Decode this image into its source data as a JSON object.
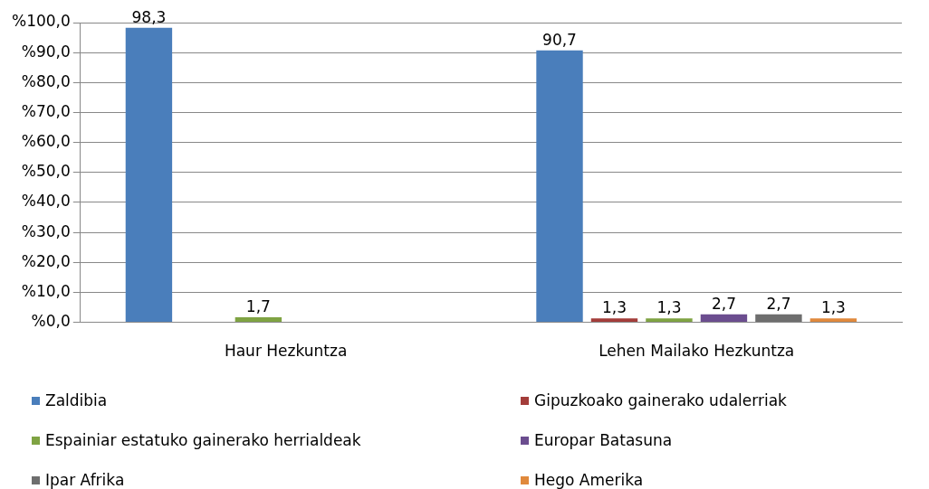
{
  "chart_data": {
    "type": "bar",
    "categories": [
      "Haur Hezkuntza",
      "Lehen Mailako Hezkuntza"
    ],
    "series": [
      {
        "name": "Zaldibia",
        "color": "#4a7ebb",
        "values": [
          98.3,
          90.7
        ],
        "value_labels": [
          "98,3",
          "90,7"
        ]
      },
      {
        "name": "Gipuzkoako gainerako udalerriak",
        "color": "#a33d3a",
        "values": [
          null,
          1.3
        ],
        "value_labels": [
          null,
          "1,3"
        ]
      },
      {
        "name": "Espainiar estatuko gainerako herrialdeak",
        "color": "#7fa343",
        "values": [
          1.7,
          1.3
        ],
        "value_labels": [
          "1,7",
          "1,3"
        ]
      },
      {
        "name": "Europar Batasuna",
        "color": "#6b4d8f",
        "values": [
          null,
          2.7
        ],
        "value_labels": [
          null,
          "2,7"
        ]
      },
      {
        "name": "Ipar Afrika",
        "color": "#6e6e6e",
        "values": [
          null,
          2.7
        ],
        "value_labels": [
          null,
          "2,7"
        ]
      },
      {
        "name": "Hego Amerika",
        "color": "#e0893c",
        "values": [
          null,
          1.3
        ],
        "value_labels": [
          null,
          "1,3"
        ]
      }
    ],
    "ylim": [
      0,
      100
    ],
    "yticks": [
      {
        "value": 0,
        "label": "%0,0"
      },
      {
        "value": 10,
        "label": "%10,0"
      },
      {
        "value": 20,
        "label": "%20,0"
      },
      {
        "value": 30,
        "label": "%30,0"
      },
      {
        "value": 40,
        "label": "%40,0"
      },
      {
        "value": 50,
        "label": "%50,0"
      },
      {
        "value": 60,
        "label": "%60,0"
      },
      {
        "value": 70,
        "label": "%70,0"
      },
      {
        "value": 80,
        "label": "%80,0"
      },
      {
        "value": 90,
        "label": "%90,0"
      },
      {
        "value": 100,
        "label": "%100,0"
      }
    ],
    "grid": "y",
    "legend": "bottom"
  }
}
